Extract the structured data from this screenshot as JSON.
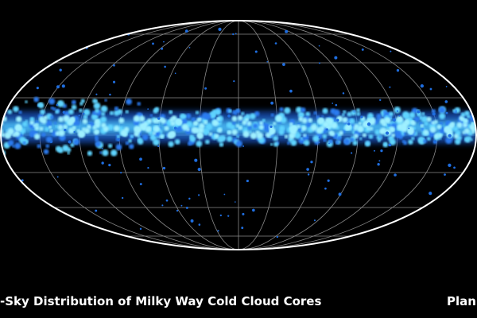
{
  "caption": "-Sky Distribution of Milky Way Cold Cloud Cores",
  "credit": "Plan"
}
